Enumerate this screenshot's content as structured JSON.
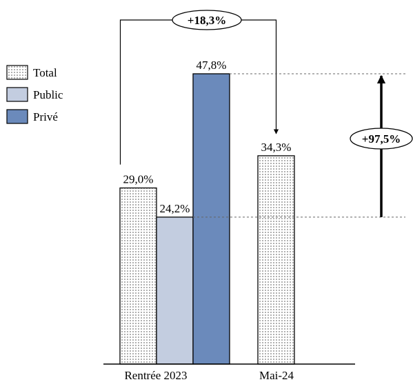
{
  "chart_data": {
    "type": "bar",
    "categories": [
      "Rentrée 2023",
      "Mai-24"
    ],
    "series": [
      {
        "name": "Total",
        "values": [
          29.0,
          34.3
        ],
        "labels": [
          "29,0%",
          "34,3%"
        ],
        "color": "#ffffff",
        "pattern": "dots"
      },
      {
        "name": "Public",
        "values": [
          24.2,
          null
        ],
        "labels": [
          "24,2%",
          ""
        ],
        "color": "#c3cde0"
      },
      {
        "name": "Privé",
        "values": [
          47.8,
          null
        ],
        "labels": [
          "47,8%",
          ""
        ],
        "color": "#6b8abb"
      }
    ],
    "ylim": [
      0,
      52
    ],
    "legend": {
      "position": "top-left"
    },
    "annotations": [
      {
        "label": "+18,3%",
        "from": "Total · Rentrée 2023",
        "to": "Total · Mai-24"
      },
      {
        "label": "+97,5%",
        "from": "Public · Rentrée 2023",
        "to": "Privé · Rentrée 2023"
      }
    ],
    "grid": false
  }
}
